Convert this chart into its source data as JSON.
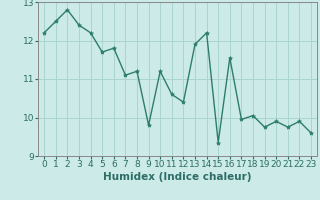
{
  "x": [
    0,
    1,
    2,
    3,
    4,
    5,
    6,
    7,
    8,
    9,
    10,
    11,
    12,
    13,
    14,
    15,
    16,
    17,
    18,
    19,
    20,
    21,
    22,
    23
  ],
  "y": [
    12.2,
    12.5,
    12.8,
    12.4,
    12.2,
    11.7,
    11.8,
    11.1,
    11.2,
    9.8,
    11.2,
    10.6,
    10.4,
    11.9,
    12.2,
    9.35,
    11.55,
    9.95,
    10.05,
    9.75,
    9.9,
    9.75,
    9.9,
    9.6
  ],
  "line_color": "#2d7d6e",
  "marker": "*",
  "marker_color": "#2d7d6e",
  "bg_color": "#cceae7",
  "grid_color": "#aad4d0",
  "xlabel": "Humidex (Indice chaleur)",
  "ylim": [
    9.0,
    13.0
  ],
  "xlim": [
    -0.5,
    23.5
  ],
  "yticks": [
    9,
    10,
    11,
    12,
    13
  ],
  "xticks": [
    0,
    1,
    2,
    3,
    4,
    5,
    6,
    7,
    8,
    9,
    10,
    11,
    12,
    13,
    14,
    15,
    16,
    17,
    18,
    19,
    20,
    21,
    22,
    23
  ],
  "xlabel_fontsize": 7.5,
  "tick_fontsize": 6.5,
  "line_width": 1.0,
  "text_color": "#2d6e66"
}
